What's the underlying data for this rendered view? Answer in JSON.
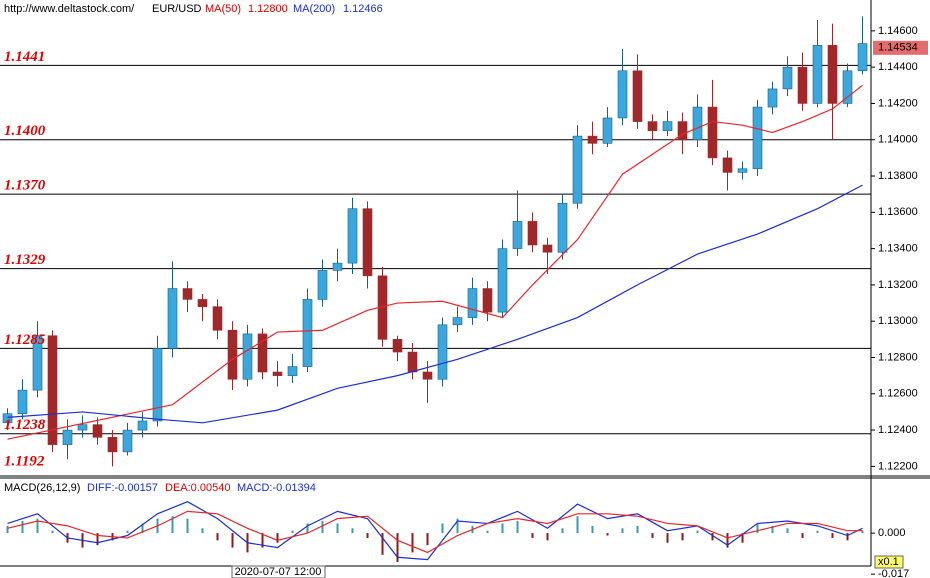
{
  "header": {
    "site": "http://www.deltastock.com/",
    "symbol": "EUR/USD"
  },
  "chart_data": [
    {
      "type": "candlestick",
      "ylim": [
        1.1218,
        1.1477
      ],
      "yticks": [
        {
          "value": 1.122,
          "label": "1.12200"
        },
        {
          "value": 1.124,
          "label": "1.12400"
        },
        {
          "value": 1.126,
          "label": "1.12600"
        },
        {
          "value": 1.128,
          "label": "1.12800"
        },
        {
          "value": 1.13,
          "label": "1.13000"
        },
        {
          "value": 1.132,
          "label": "1.13200"
        },
        {
          "value": 1.134,
          "label": "1.13400"
        },
        {
          "value": 1.136,
          "label": "1.13600"
        },
        {
          "value": 1.138,
          "label": "1.13800"
        },
        {
          "value": 1.14,
          "label": "1.14000"
        },
        {
          "value": 1.142,
          "label": "1.14200"
        },
        {
          "value": 1.144,
          "label": "1.14400"
        },
        {
          "value": 1.146,
          "label": "1.14600"
        }
      ],
      "up_color": "#3ba7dc",
      "down_color": "#a0282a",
      "open": [
        1.1244,
        1.1249,
        1.1262,
        1.1292,
        1.1232,
        1.124,
        1.1243,
        1.1236,
        1.1228,
        1.124,
        1.1245,
        1.1285,
        1.1318,
        1.1312,
        1.1308,
        1.1295,
        1.1268,
        1.1293,
        1.1272,
        1.127,
        1.1275,
        1.1312,
        1.1328,
        1.1332,
        1.1362,
        1.1325,
        1.129,
        1.1283,
        1.1272,
        1.1268,
        1.1298,
        1.1302,
        1.1318,
        1.1305,
        1.134,
        1.1355,
        1.1342,
        1.1338,
        1.1365,
        1.1402,
        1.1398,
        1.1412,
        1.1438,
        1.141,
        1.1405,
        1.141,
        1.14,
        1.1418,
        1.139,
        1.1382,
        1.1384,
        1.1418,
        1.1428,
        1.144,
        1.142,
        1.1452,
        1.142,
        1.1438
      ],
      "high": [
        1.1252,
        1.1268,
        1.13,
        1.1295,
        1.1246,
        1.1248,
        1.1247,
        1.124,
        1.1244,
        1.125,
        1.1292,
        1.1333,
        1.1322,
        1.1315,
        1.1312,
        1.13,
        1.1298,
        1.1296,
        1.1278,
        1.1282,
        1.1318,
        1.1334,
        1.134,
        1.1368,
        1.1366,
        1.133,
        1.1292,
        1.1288,
        1.1278,
        1.1302,
        1.1308,
        1.1324,
        1.1322,
        1.1345,
        1.1372,
        1.136,
        1.1346,
        1.137,
        1.1408,
        1.141,
        1.1418,
        1.145,
        1.1447,
        1.1414,
        1.1416,
        1.1415,
        1.1425,
        1.1433,
        1.1394,
        1.1388,
        1.1422,
        1.1432,
        1.1446,
        1.1448,
        1.1466,
        1.1464,
        1.1442,
        1.1468
      ],
      "low": [
        1.124,
        1.1246,
        1.1258,
        1.1228,
        1.1224,
        1.1236,
        1.1232,
        1.122,
        1.1226,
        1.1236,
        1.1242,
        1.128,
        1.1305,
        1.13,
        1.129,
        1.1262,
        1.1264,
        1.1268,
        1.1264,
        1.1266,
        1.1272,
        1.1308,
        1.1322,
        1.1326,
        1.1318,
        1.1286,
        1.1278,
        1.1268,
        1.1255,
        1.1264,
        1.1294,
        1.1298,
        1.13,
        1.1302,
        1.1336,
        1.1338,
        1.1326,
        1.1334,
        1.1362,
        1.1392,
        1.1396,
        1.1408,
        1.1406,
        1.14,
        1.1402,
        1.1392,
        1.1396,
        1.1386,
        1.1372,
        1.1378,
        1.138,
        1.1414,
        1.1424,
        1.1416,
        1.1418,
        1.14,
        1.1418,
        1.1436
      ],
      "close": [
        1.1249,
        1.1262,
        1.1292,
        1.1232,
        1.124,
        1.1243,
        1.1236,
        1.1228,
        1.124,
        1.1245,
        1.1285,
        1.1318,
        1.1312,
        1.1308,
        1.1295,
        1.1268,
        1.1293,
        1.1272,
        1.127,
        1.1275,
        1.1312,
        1.1328,
        1.1332,
        1.1362,
        1.1325,
        1.129,
        1.1283,
        1.1272,
        1.1268,
        1.1298,
        1.1302,
        1.1318,
        1.1305,
        1.134,
        1.1355,
        1.1342,
        1.1338,
        1.1365,
        1.1402,
        1.1398,
        1.1412,
        1.1438,
        1.141,
        1.1405,
        1.141,
        1.14,
        1.1418,
        1.139,
        1.1382,
        1.1384,
        1.1418,
        1.1428,
        1.144,
        1.142,
        1.1452,
        1.142,
        1.1438,
        1.1453
      ],
      "series": [
        {
          "name": "MA(50)",
          "value_label": "1.12800",
          "color": "#e8262a",
          "x": [
            0,
            11,
            15,
            18,
            21,
            24,
            26,
            29,
            33,
            35,
            38,
            41,
            45,
            47,
            49,
            51,
            53,
            55,
            57
          ],
          "values": [
            1.1235,
            1.1254,
            1.1279,
            1.1294,
            1.1295,
            1.1306,
            1.131,
            1.1311,
            1.1302,
            1.132,
            1.1345,
            1.1381,
            1.1403,
            1.141,
            1.1408,
            1.1404,
            1.141,
            1.1417,
            1.143
          ]
        },
        {
          "name": "MA(200)",
          "value_label": "1.12466",
          "color": "#1a2fd6",
          "x": [
            0,
            5,
            10,
            13,
            18,
            22,
            26,
            30,
            34,
            38,
            42,
            46,
            50,
            54,
            57
          ],
          "values": [
            1.1247,
            1.125,
            1.1246,
            1.1244,
            1.1251,
            1.1263,
            1.127,
            1.1279,
            1.129,
            1.1302,
            1.132,
            1.1337,
            1.1348,
            1.1362,
            1.1375
          ]
        }
      ],
      "levels": [
        {
          "value": 1.1441,
          "label": "1.1441"
        },
        {
          "value": 1.14,
          "label": "1.1400"
        },
        {
          "value": 1.137,
          "label": "1.1370"
        },
        1.1329,
        1.1285,
        1.1238,
        1.1192
      ],
      "last_price": {
        "value": 1.14534,
        "label": "1.14534"
      },
      "cursor_time": "2020-07-07 12:00"
    },
    {
      "type": "macd",
      "title": "MACD(26,12,9)",
      "ylim": [
        -0.0186,
        0.022
      ],
      "yticks": [
        {
          "value": 0,
          "label": "0.000"
        },
        {
          "value": -0.017,
          "label": "-0.017"
        }
      ],
      "series": [
        {
          "name": "DIFF:-0.00157",
          "color": "#1a2fd6",
          "x": [
            0,
            2,
            4,
            6,
            8,
            10,
            12,
            14,
            16,
            18,
            20,
            22,
            24,
            26,
            28,
            30,
            32,
            34,
            36,
            38,
            40,
            42,
            44,
            46,
            48,
            50,
            52,
            54,
            56,
            57
          ],
          "values": [
            0.004,
            0.008,
            -0.002,
            -0.004,
            -0.001,
            0.008,
            0.013,
            0.006,
            -0.004,
            -0.006,
            0.003,
            0.009,
            0.006,
            -0.01,
            -0.011,
            0.005,
            0.004,
            0.009,
            0.002,
            0.012,
            0.006,
            0.008,
            0.001,
            0.003,
            -0.005,
            0.004,
            0.005,
            0.003,
            -0.001,
            0.002
          ]
        },
        {
          "name": "DEA:0.00540",
          "color": "#e8262a",
          "x": [
            0,
            2,
            4,
            6,
            8,
            10,
            12,
            14,
            16,
            18,
            20,
            22,
            24,
            26,
            28,
            30,
            32,
            34,
            36,
            38,
            40,
            42,
            44,
            46,
            48,
            50,
            52,
            54,
            56,
            57
          ],
          "values": [
            0.002,
            0.005,
            0.003,
            -0.001,
            -0.002,
            0.003,
            0.009,
            0.008,
            0.002,
            -0.003,
            0.0,
            0.006,
            0.007,
            -0.003,
            -0.008,
            -0.001,
            0.004,
            0.006,
            0.004,
            0.008,
            0.008,
            0.007,
            0.004,
            0.003,
            -0.002,
            0.001,
            0.004,
            0.004,
            0.001,
            0.001
          ]
        }
      ],
      "histogram": {
        "name": "MACD:-0.01394",
        "up_color": "#3a9ca8",
        "down_color": "#8b1a1a",
        "values": [
          0.003,
          0.005,
          0.006,
          0.001,
          -0.004,
          -0.006,
          -0.005,
          -0.003,
          0.001,
          0.004,
          0.006,
          0.007,
          0.006,
          0.002,
          -0.003,
          -0.006,
          -0.008,
          -0.006,
          -0.004,
          0.001,
          0.004,
          0.005,
          0.004,
          0.002,
          -0.002,
          -0.009,
          -0.012,
          -0.008,
          -0.005,
          0.004,
          0.006,
          0.003,
          0.001,
          0.004,
          0.005,
          -0.002,
          -0.003,
          0.002,
          0.007,
          0.003,
          -0.001,
          0.002,
          0.003,
          -0.002,
          -0.004,
          -0.003,
          0.001,
          -0.003,
          -0.006,
          -0.004,
          0.004,
          0.003,
          0.002,
          -0.002,
          0.001,
          -0.002,
          -0.003,
          0.001
        ]
      },
      "scale_label": "x0.1"
    }
  ]
}
